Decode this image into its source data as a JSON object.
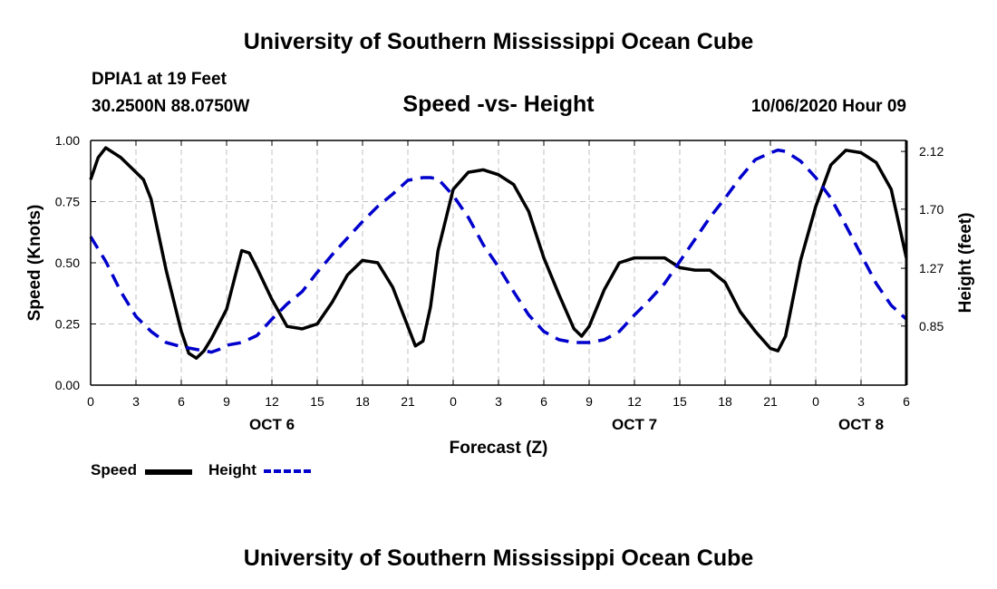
{
  "header": {
    "title_top": "University of Southern Mississippi Ocean Cube",
    "station": "DPIA1 at 19 Feet",
    "coords": "30.2500N 88.0750W",
    "subtitle": "Speed -vs- Height",
    "datetime": "10/06/2020 Hour 09",
    "title_bottom": "University of Southern Mississippi Ocean Cube"
  },
  "legend": {
    "speed_label": "Speed",
    "height_label": "Height"
  },
  "colors": {
    "speed": "#000000",
    "height": "#0000cc",
    "grid": "#c0c0c0"
  },
  "chart_data": {
    "type": "line",
    "xlabel": "Forecast (Z)",
    "ylabel_left": "Speed (Knots)",
    "ylabel_right": "Height (feet)",
    "x_range_hours": [
      0,
      54
    ],
    "x_ticks": [
      {
        "h": 0,
        "label": "0"
      },
      {
        "h": 3,
        "label": "3"
      },
      {
        "h": 6,
        "label": "6"
      },
      {
        "h": 9,
        "label": "9"
      },
      {
        "h": 12,
        "label": "12"
      },
      {
        "h": 15,
        "label": "15"
      },
      {
        "h": 18,
        "label": "18"
      },
      {
        "h": 21,
        "label": "21"
      },
      {
        "h": 24,
        "label": "0"
      },
      {
        "h": 27,
        "label": "3"
      },
      {
        "h": 30,
        "label": "6"
      },
      {
        "h": 33,
        "label": "9"
      },
      {
        "h": 36,
        "label": "12"
      },
      {
        "h": 39,
        "label": "15"
      },
      {
        "h": 42,
        "label": "18"
      },
      {
        "h": 45,
        "label": "21"
      },
      {
        "h": 48,
        "label": "0"
      },
      {
        "h": 51,
        "label": "3"
      },
      {
        "h": 54,
        "label": "6"
      }
    ],
    "date_labels": [
      {
        "h": 12,
        "label": "OCT 6"
      },
      {
        "h": 36,
        "label": "OCT 7"
      },
      {
        "h": 51,
        "label": "OCT 8"
      }
    ],
    "ylim_left": [
      0,
      1
    ],
    "yticks_left": [
      "0.00",
      "0.25",
      "0.50",
      "0.75",
      "1.00"
    ],
    "ylim_right": [
      0.42,
      2.2
    ],
    "yticks_right": [
      {
        "v": 0.85,
        "label": "0.85"
      },
      {
        "v": 1.27,
        "label": "1.27"
      },
      {
        "v": 1.7,
        "label": "1.70"
      },
      {
        "v": 2.12,
        "label": "2.12"
      }
    ],
    "series": [
      {
        "name": "Speed",
        "axis": "left",
        "style": "solid",
        "x": [
          0,
          0.5,
          1,
          2,
          3,
          3.5,
          4,
          5,
          6,
          6.5,
          7,
          7.5,
          8,
          9,
          10,
          10.5,
          11,
          12,
          13,
          14,
          15,
          16,
          17,
          18,
          19,
          20,
          21,
          21.5,
          22,
          22.5,
          23,
          24,
          25,
          26,
          27,
          28,
          29,
          30,
          31,
          32,
          32.5,
          33,
          34,
          35,
          36,
          37,
          38,
          39,
          40,
          41,
          42,
          43,
          44,
          45,
          45.5,
          46,
          47,
          48,
          49,
          50,
          51,
          51.5,
          52,
          53,
          54
        ],
        "values": [
          0.84,
          0.93,
          0.97,
          0.93,
          0.87,
          0.84,
          0.76,
          0.47,
          0.22,
          0.13,
          0.11,
          0.14,
          0.19,
          0.31,
          0.55,
          0.54,
          0.48,
          0.35,
          0.24,
          0.23,
          0.25,
          0.34,
          0.45,
          0.51,
          0.5,
          0.4,
          0.24,
          0.16,
          0.18,
          0.32,
          0.55,
          0.8,
          0.87,
          0.88,
          0.86,
          0.82,
          0.71,
          0.52,
          0.37,
          0.23,
          0.2,
          0.24,
          0.39,
          0.5,
          0.52,
          0.52,
          0.52,
          0.48,
          0.47,
          0.47,
          0.42,
          0.3,
          0.22,
          0.15,
          0.14,
          0.2,
          0.51,
          0.73,
          0.9,
          0.96,
          0.95,
          0.93,
          0.91,
          0.8,
          0.52
        ]
      },
      {
        "name": "Height",
        "axis": "right",
        "style": "dashed",
        "x": [
          0,
          1,
          2,
          3,
          4,
          5,
          6,
          7,
          7.5,
          8,
          8.5,
          9,
          10,
          11,
          12,
          13,
          14,
          15,
          16,
          17,
          18,
          19,
          20,
          21,
          22,
          22.5,
          23,
          24,
          25,
          26,
          27,
          28,
          29,
          30,
          31,
          32,
          32.5,
          33,
          34,
          35,
          36,
          37,
          38,
          39,
          40,
          41,
          42,
          43,
          44,
          45,
          45.5,
          46,
          47,
          48,
          49,
          50,
          51,
          52,
          53,
          54
        ],
        "values": [
          1.5,
          1.32,
          1.1,
          0.92,
          0.81,
          0.73,
          0.7,
          0.68,
          0.67,
          0.66,
          0.68,
          0.71,
          0.73,
          0.78,
          0.9,
          1.01,
          1.1,
          1.24,
          1.37,
          1.49,
          1.61,
          1.72,
          1.81,
          1.91,
          1.93,
          1.93,
          1.92,
          1.8,
          1.64,
          1.44,
          1.28,
          1.1,
          0.93,
          0.81,
          0.75,
          0.73,
          0.73,
          0.73,
          0.75,
          0.81,
          0.93,
          1.04,
          1.16,
          1.32,
          1.48,
          1.64,
          1.78,
          1.93,
          2.06,
          2.11,
          2.13,
          2.12,
          2.05,
          1.93,
          1.78,
          1.58,
          1.37,
          1.16,
          1.0,
          0.9
        ]
      }
    ]
  }
}
